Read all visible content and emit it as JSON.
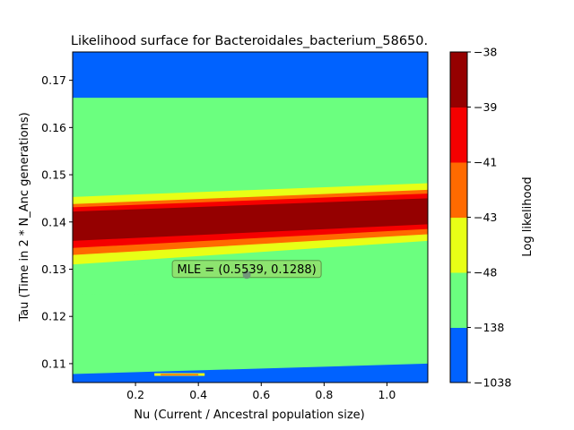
{
  "chart_data": {
    "type": "heatmap",
    "title": "Likelihood surface for Bacteroidales_bacterium_58650.",
    "xlabel": "Nu (Current / Ancestral population size)",
    "ylabel": "Tau (Time in 2 * N_Anc generations)",
    "xlim": [
      0.0,
      1.13
    ],
    "ylim": [
      0.106,
      0.176
    ],
    "x_ticks": [
      0.2,
      0.4,
      0.6,
      0.8,
      1.0
    ],
    "x_tick_labels": [
      "0.2",
      "0.4",
      "0.6",
      "0.8",
      "1.0"
    ],
    "y_ticks": [
      0.11,
      0.12,
      0.13,
      0.14,
      0.15,
      0.16,
      0.17
    ],
    "y_tick_labels": [
      "0.11",
      "0.12",
      "0.13",
      "0.14",
      "0.15",
      "0.16",
      "0.17"
    ],
    "colorbar": {
      "label": "Log likelihood",
      "levels": [
        -1038,
        -138,
        -48,
        -43,
        -41,
        -39,
        -38
      ],
      "level_labels": [
        "−1038",
        "−138",
        "−48",
        "−43",
        "−41",
        "−39",
        "−38"
      ],
      "colors": [
        "#0062ff",
        "#6bff7f",
        "#e8ff16",
        "#ff6a00",
        "#f50000",
        "#950000"
      ]
    },
    "contours": [
      {
        "level_band": 1,
        "color": "#6bff7f",
        "y_low": [
          0.1078,
          0.11
        ],
        "y_high": [
          0.1663,
          0.1663
        ]
      },
      {
        "level_band": 1,
        "color": "#6bff7f",
        "y_low": [
          0.1246,
          0.1254
        ],
        "y_high": [
          0.1453,
          0.1482
        ]
      },
      {
        "level_band": 2,
        "color": "#e8ff16",
        "y_low": [
          0.131,
          0.136
        ],
        "y_high": [
          0.1453,
          0.1482
        ]
      },
      {
        "level_band": 3,
        "color": "#ff6a00",
        "y_low": [
          0.133,
          0.1374
        ],
        "y_high": [
          0.1438,
          0.1468
        ]
      },
      {
        "level_band": 4,
        "color": "#f50000",
        "y_low": [
          0.1345,
          0.1385
        ],
        "y_high": [
          0.1431,
          0.146
        ]
      },
      {
        "level_band": 5,
        "color": "#950000",
        "y_low": [
          0.136,
          0.1395
        ],
        "y_high": [
          0.1422,
          0.145
        ]
      }
    ],
    "mle": {
      "nu": 0.5539,
      "tau": 0.1288,
      "label": "MLE = (0.5539, 0.1288)"
    }
  }
}
